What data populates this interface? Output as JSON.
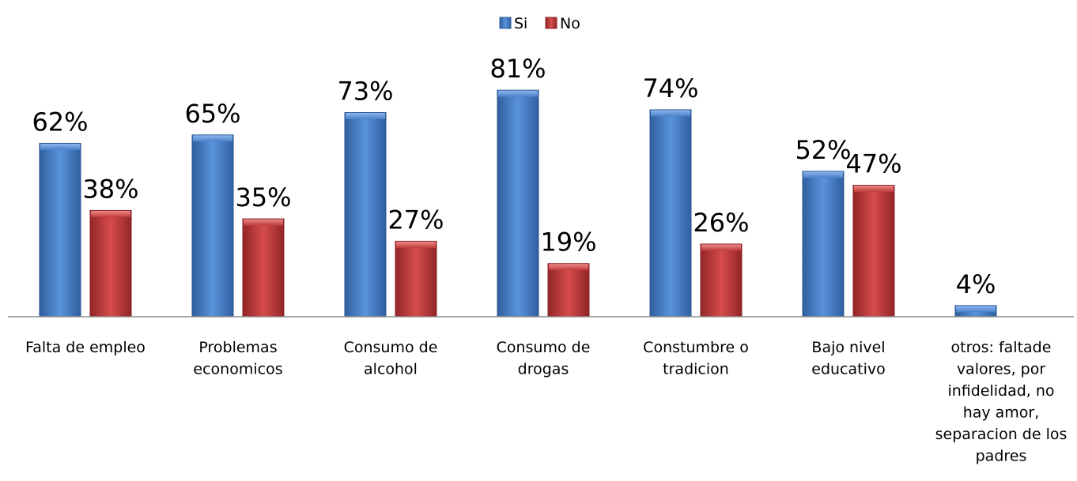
{
  "chart_data": {
    "type": "bar",
    "title": "",
    "xlabel": "",
    "ylabel": "",
    "ylim": [
      0,
      100
    ],
    "grid": false,
    "legend_position": "top-center",
    "categories": [
      "Falta de empleo",
      "Problemas economicos",
      "Consumo de alcohol",
      "Consumo de drogas",
      "Constumbre o tradicion",
      "Bajo nivel educativo",
      "otros: faltade valores, por infidelidad, no hay amor, separacion de los padres"
    ],
    "category_lines": [
      [
        "Falta de empleo"
      ],
      [
        "Problemas",
        "economicos"
      ],
      [
        "Consumo de",
        "alcohol"
      ],
      [
        "Consumo de",
        "drogas"
      ],
      [
        "Constumbre o",
        "tradicion"
      ],
      [
        "Bajo nivel",
        "educativo"
      ],
      [
        "otros: faltade",
        "valores, por",
        "infidelidad, no",
        "hay amor,",
        "separacion de los",
        "padres"
      ]
    ],
    "series": [
      {
        "name": "Si",
        "color": "#4a7fc9",
        "values": [
          62,
          65,
          73,
          81,
          74,
          52,
          4
        ],
        "labels": [
          "62%",
          "65%",
          "73%",
          "81%",
          "74%",
          "52%",
          "4%"
        ]
      },
      {
        "name": "No",
        "color": "#c0393a",
        "values": [
          38,
          35,
          27,
          19,
          26,
          47,
          null
        ],
        "labels": [
          "38%",
          "35%",
          "27%",
          "19%",
          "26%",
          "47%",
          ""
        ]
      }
    ]
  }
}
